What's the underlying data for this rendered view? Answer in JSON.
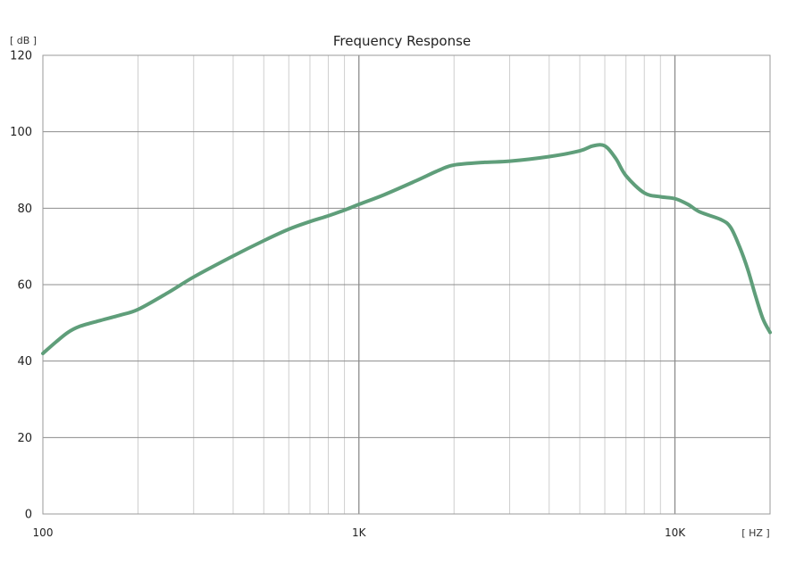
{
  "chart_data": {
    "type": "line",
    "title": "Frequency Response",
    "y_unit": "[ dB ]",
    "x_unit": "[ HZ ]",
    "xscale": "log",
    "xlim": [
      100,
      20000
    ],
    "ylim": [
      0,
      120
    ],
    "grid": true,
    "y_ticks": [
      {
        "value": 0,
        "label": "0"
      },
      {
        "value": 20,
        "label": "20"
      },
      {
        "value": 40,
        "label": "40"
      },
      {
        "value": 60,
        "label": "60"
      },
      {
        "value": 80,
        "label": "80"
      },
      {
        "value": 100,
        "label": "100"
      },
      {
        "value": 120,
        "label": "120"
      }
    ],
    "x_ticks": [
      {
        "value": 100,
        "label": "100"
      },
      {
        "value": 1000,
        "label": "1K"
      },
      {
        "value": 10000,
        "label": "10K"
      }
    ],
    "line_color": "#5f9e7a",
    "series": [
      {
        "x": [
          100,
          110,
          120,
          130,
          150,
          175,
          200,
          250,
          300,
          400,
          500,
          600,
          700,
          800,
          900,
          1000,
          1200,
          1500,
          1800,
          2000,
          2500,
          3000,
          4000,
          5000,
          5500,
          6000,
          6500,
          7000,
          8000,
          9000,
          10000,
          11000,
          12000,
          14000,
          15000,
          16000,
          17000,
          18000,
          19000,
          20000
        ],
        "y": [
          42,
          45,
          47.5,
          49,
          50.5,
          52,
          53.5,
          58,
          62,
          67.5,
          71.5,
          74.5,
          76.5,
          78,
          79.5,
          81,
          83.5,
          87,
          90,
          91.3,
          92,
          92.3,
          93.5,
          95,
          96.3,
          96.3,
          93,
          88.5,
          84,
          83,
          82.5,
          81,
          79,
          77,
          75,
          70,
          64,
          57,
          51,
          47.5
        ]
      }
    ]
  }
}
